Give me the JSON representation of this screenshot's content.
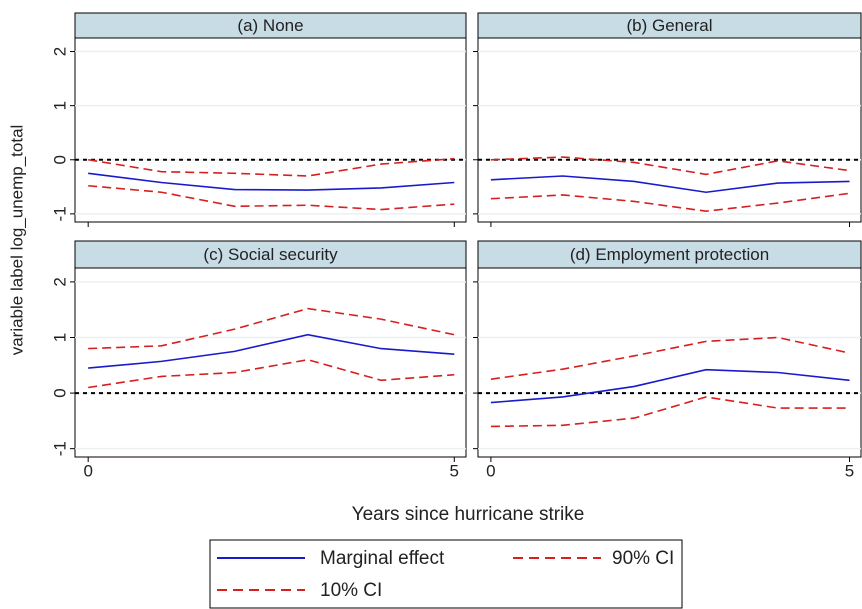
{
  "ylabel": "variable label log_unemp_total",
  "xlabel": "Years since hurricane strike",
  "chart_data": [
    {
      "type": "line",
      "title": "(a) None",
      "x": [
        0,
        1,
        2,
        3,
        4,
        5
      ],
      "series": [
        {
          "name": "Marginal effect",
          "color": "#1a1acd",
          "dashed": false,
          "values": [
            -0.25,
            -0.42,
            -0.55,
            -0.56,
            -0.52,
            -0.42
          ]
        },
        {
          "name": "90% CI",
          "color": "#d62020",
          "dashed": true,
          "values": [
            0.0,
            -0.22,
            -0.25,
            -0.3,
            -0.08,
            0.02
          ]
        },
        {
          "name": "10% CI",
          "color": "#d62020",
          "dashed": true,
          "values": [
            -0.48,
            -0.6,
            -0.86,
            -0.84,
            -0.92,
            -0.82
          ]
        }
      ],
      "xlim": [
        -0.18,
        5.16
      ],
      "ylim": [
        -1.15,
        2.25
      ],
      "xticks": [
        0,
        5
      ],
      "yticks": [
        -1,
        0,
        1,
        2
      ],
      "reference_line": 0,
      "grid": true
    },
    {
      "type": "line",
      "title": "(b) General",
      "x": [
        0,
        1,
        2,
        3,
        4,
        5
      ],
      "series": [
        {
          "name": "Marginal effect",
          "color": "#1a1acd",
          "dashed": false,
          "values": [
            -0.37,
            -0.3,
            -0.4,
            -0.6,
            -0.43,
            -0.4
          ]
        },
        {
          "name": "90% CI",
          "color": "#d62020",
          "dashed": true,
          "values": [
            0.0,
            0.05,
            -0.05,
            -0.27,
            -0.02,
            -0.2
          ]
        },
        {
          "name": "10% CI",
          "color": "#d62020",
          "dashed": true,
          "values": [
            -0.72,
            -0.65,
            -0.77,
            -0.95,
            -0.8,
            -0.62
          ]
        }
      ],
      "xlim": [
        -0.18,
        5.16
      ],
      "ylim": [
        -1.15,
        2.25
      ],
      "xticks": [
        0,
        5
      ],
      "yticks": [
        -1,
        0,
        1,
        2
      ],
      "reference_line": 0,
      "grid": true
    },
    {
      "type": "line",
      "title": "(c) Social security",
      "x": [
        0,
        1,
        2,
        3,
        4,
        5
      ],
      "series": [
        {
          "name": "Marginal effect",
          "color": "#1a1acd",
          "dashed": false,
          "values": [
            0.45,
            0.57,
            0.75,
            1.05,
            0.8,
            0.7
          ]
        },
        {
          "name": "90% CI",
          "color": "#d62020",
          "dashed": true,
          "values": [
            0.8,
            0.85,
            1.15,
            1.52,
            1.33,
            1.05
          ]
        },
        {
          "name": "10% CI",
          "color": "#d62020",
          "dashed": true,
          "values": [
            0.1,
            0.3,
            0.37,
            0.6,
            0.23,
            0.33
          ]
        }
      ],
      "xlim": [
        -0.18,
        5.16
      ],
      "ylim": [
        -1.15,
        2.25
      ],
      "xticks": [
        0,
        5
      ],
      "yticks": [
        -1,
        0,
        1,
        2
      ],
      "reference_line": 0,
      "grid": true
    },
    {
      "type": "line",
      "title": "(d) Employment protection",
      "x": [
        0,
        1,
        2,
        3,
        4,
        5
      ],
      "series": [
        {
          "name": "Marginal effect",
          "color": "#1a1acd",
          "dashed": false,
          "values": [
            -0.17,
            -0.07,
            0.12,
            0.42,
            0.37,
            0.23
          ]
        },
        {
          "name": "90% CI",
          "color": "#d62020",
          "dashed": true,
          "values": [
            0.25,
            0.43,
            0.67,
            0.93,
            1.0,
            0.72
          ]
        },
        {
          "name": "10% CI",
          "color": "#d62020",
          "dashed": true,
          "values": [
            -0.6,
            -0.58,
            -0.45,
            -0.07,
            -0.27,
            -0.27
          ]
        }
      ],
      "xlim": [
        -0.18,
        5.16
      ],
      "ylim": [
        -1.15,
        2.25
      ],
      "xticks": [
        0,
        5
      ],
      "yticks": [
        -1,
        0,
        1,
        2
      ],
      "reference_line": 0,
      "grid": true
    }
  ]
}
